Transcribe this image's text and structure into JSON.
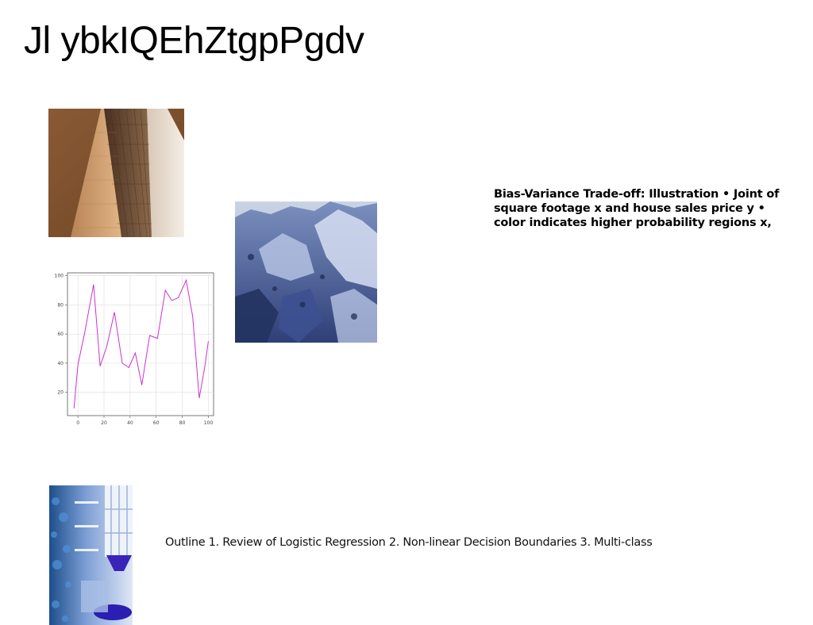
{
  "page": {
    "title": "Jl ybkIQEhZtgpPgdv"
  },
  "callout_text": "Bias-Variance Trade-off: Illustration • Joint of square footage x and house sales price y • color indicates higher probability regions x,",
  "outline_text": "Outline 1. Review of Logistic Regression 2. Non-linear Decision Boundaries 3. Multi-class",
  "images": {
    "building": "photo of glass skyscraper facade",
    "rocks": "photo of rocky canyon landscape in blue tones",
    "interior": "photo of interior room with shelves in blue tones"
  },
  "chart_data": {
    "type": "line",
    "title": "",
    "xlabel": "",
    "ylabel": "",
    "x": [
      -3,
      0,
      5,
      12,
      17,
      22,
      28,
      34,
      39,
      44,
      49,
      55,
      61,
      67,
      72,
      77,
      83,
      88,
      93,
      97,
      100
    ],
    "series": [
      {
        "values": [
          9,
          39,
          60,
          94,
          38,
          51,
          75,
          40,
          37,
          47,
          25,
          59,
          57,
          90,
          83,
          85,
          97,
          72,
          16,
          36,
          55
        ]
      }
    ],
    "xticks": [
      0,
      20,
      40,
      60,
      80,
      100
    ],
    "yticks": [
      20,
      40,
      60,
      80,
      100
    ],
    "xlim": [
      -8,
      104
    ],
    "ylim": [
      4,
      102
    ],
    "grid": true,
    "line_color": "#cc33cc"
  }
}
